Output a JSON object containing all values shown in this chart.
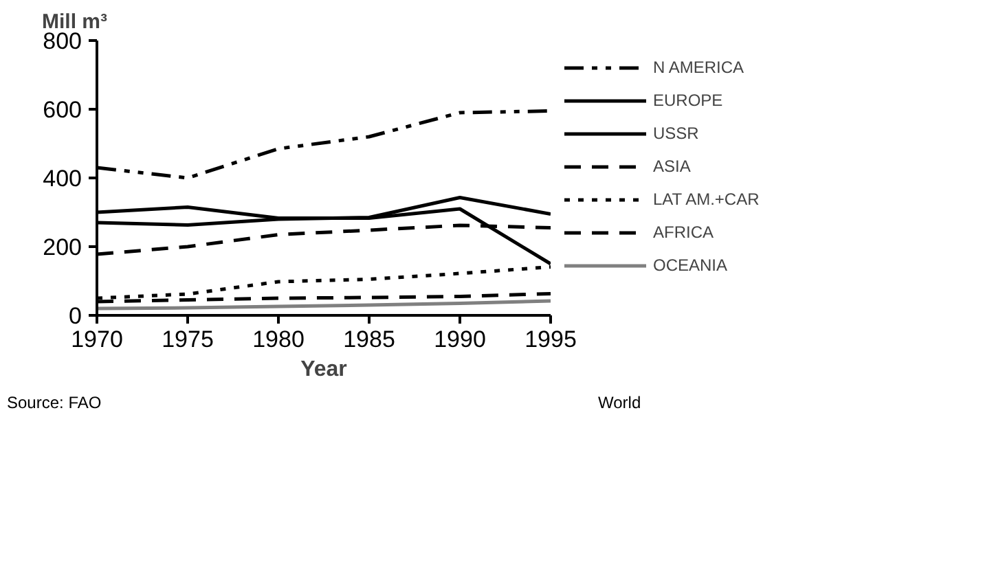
{
  "chart_data": {
    "type": "line",
    "title": "Mill m³",
    "xlabel": "Year",
    "x": [
      1970,
      1975,
      1980,
      1985,
      1990,
      1995
    ],
    "xlim": [
      1970,
      1995
    ],
    "xticks": [
      1970,
      1975,
      1980,
      1985,
      1990,
      1995
    ],
    "ylim": [
      0,
      800
    ],
    "yticks": [
      0,
      200,
      400,
      600,
      800
    ],
    "legend": "right",
    "grid": false,
    "series": [
      {
        "name": "N AMERICA",
        "color": "#000000",
        "line_style": "dashdot",
        "values": [
          430,
          400,
          485,
          520,
          590,
          595
        ]
      },
      {
        "name": "EUROPE",
        "color": "#000000",
        "line_style": "solid",
        "values": [
          270,
          263,
          280,
          285,
          343,
          295
        ]
      },
      {
        "name": "USSR",
        "color": "#000000",
        "line_style": "solid",
        "values": [
          300,
          315,
          283,
          283,
          310,
          150
        ]
      },
      {
        "name": "ASIA",
        "color": "#000000",
        "line_style": "dashed",
        "values": [
          178,
          200,
          235,
          248,
          262,
          255
        ]
      },
      {
        "name": "LAT AM.+CAR",
        "color": "#000000",
        "line_style": "dotted",
        "values": [
          50,
          62,
          98,
          105,
          122,
          141
        ]
      },
      {
        "name": "AFRICA",
        "color": "#000000",
        "line_style": "dashed",
        "values": [
          40,
          45,
          50,
          52,
          55,
          63
        ]
      },
      {
        "name": "OCEANIA",
        "color": "#808080",
        "line_style": "solid",
        "values": [
          20,
          22,
          26,
          30,
          35,
          42
        ]
      }
    ],
    "annotations": [
      "Source: FAO",
      "World"
    ]
  }
}
